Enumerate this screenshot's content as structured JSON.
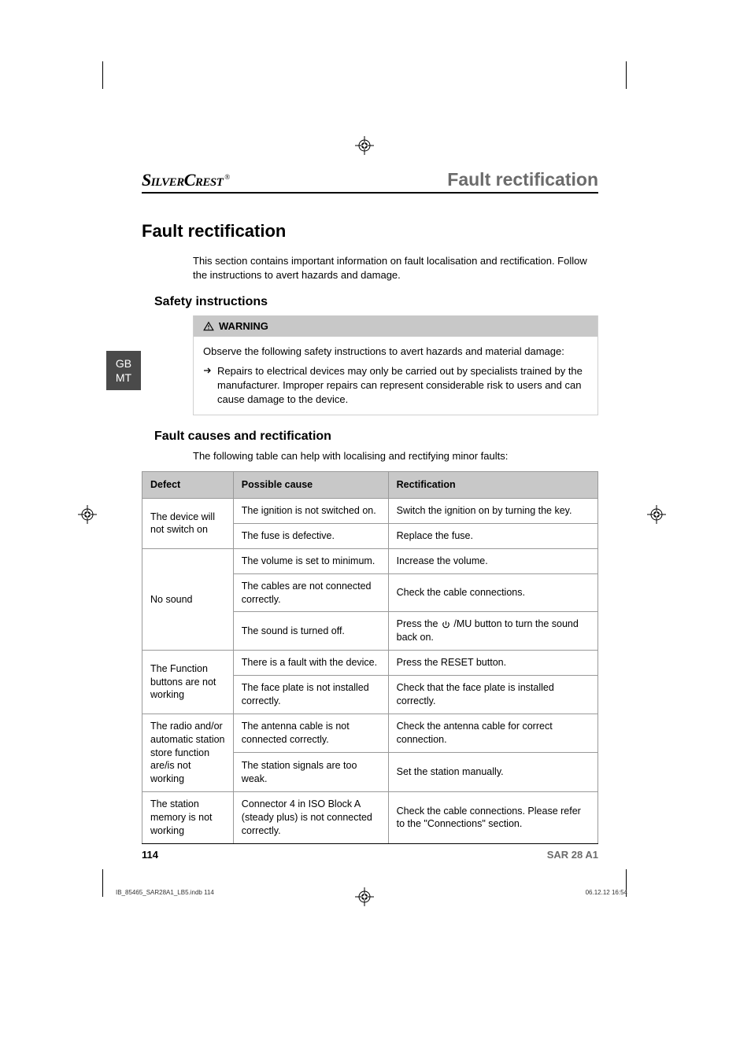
{
  "brand": {
    "part1": "Silver",
    "part2": "Crest",
    "reg": "®"
  },
  "page_topic": "Fault rectification",
  "main_heading": "Fault rectification",
  "intro_text": "This section contains important information on fault localisation and rectification. Follow the instructions to avert hazards and damage.",
  "safety_heading": "Safety instructions",
  "warning": {
    "label": "WARNING",
    "body": "Observe the following safety instructions to avert hazards and material damage:",
    "bullet": "Repairs to electrical devices may only be carried out by specialists trained by the manufacturer. Improper repairs can represent considerable risk to users and can cause damage to the device."
  },
  "causes_heading": "Fault causes and rectification",
  "table_intro": "The following table can help with localising and rectifying minor faults:",
  "table": {
    "headers": [
      "Defect",
      "Possible cause",
      "Rectification"
    ],
    "col_widths": [
      "20%",
      "34%",
      "46%"
    ],
    "rows": [
      {
        "defect": "The device will not switch on",
        "defect_rowspan": 2,
        "cause": "The ignition is not switched on.",
        "fix": "Switch the ignition on by turning the key."
      },
      {
        "cause": "The fuse is defective.",
        "fix": "Replace the fuse."
      },
      {
        "defect": "No sound",
        "defect_rowspan": 3,
        "cause": "The volume is set to minimum.",
        "fix": "Increase the volume."
      },
      {
        "cause": "The cables are not connected correctly.",
        "fix": "Check the cable connections."
      },
      {
        "cause": "The sound is turned off.",
        "fix_prefix": "Press the ",
        "fix_icon": "power",
        "fix_suffix": " /MU button to turn the sound back on."
      },
      {
        "defect": "The Function buttons are not working",
        "defect_rowspan": 2,
        "cause": "There is a fault with the device.",
        "fix": "Press the RESET button."
      },
      {
        "cause": "The face plate is not installed correctly.",
        "fix": "Check that the face plate is installed correctly."
      },
      {
        "defect": "The radio and/or automatic station store function are/is not working",
        "defect_rowspan": 2,
        "cause": "The antenna cable is not connected correctly.",
        "fix": "Check the antenna cable for correct connection."
      },
      {
        "cause": "The station signals are too weak.",
        "fix": "Set the station manually."
      },
      {
        "defect": "The station memory is not working",
        "defect_rowspan": 1,
        "cause": "Connector 4 in ISO Block A (steady plus) is not connected correctly.",
        "fix": "Check the cable connections. Please refer to the \"Connections\" section."
      }
    ]
  },
  "side_tab": {
    "line1": "GB",
    "line2": "MT"
  },
  "footer": {
    "page": "114",
    "model": "SAR 28 A1"
  },
  "print_footer": {
    "file": "IB_85465_SAR28A1_LB5.indb   114",
    "date": "06.12.12   16:54"
  },
  "colors": {
    "header_gray": "#6b6b6b",
    "table_header_bg": "#c8c8c8",
    "table_border": "#999999",
    "side_tab_bg": "#4a4a4a"
  }
}
